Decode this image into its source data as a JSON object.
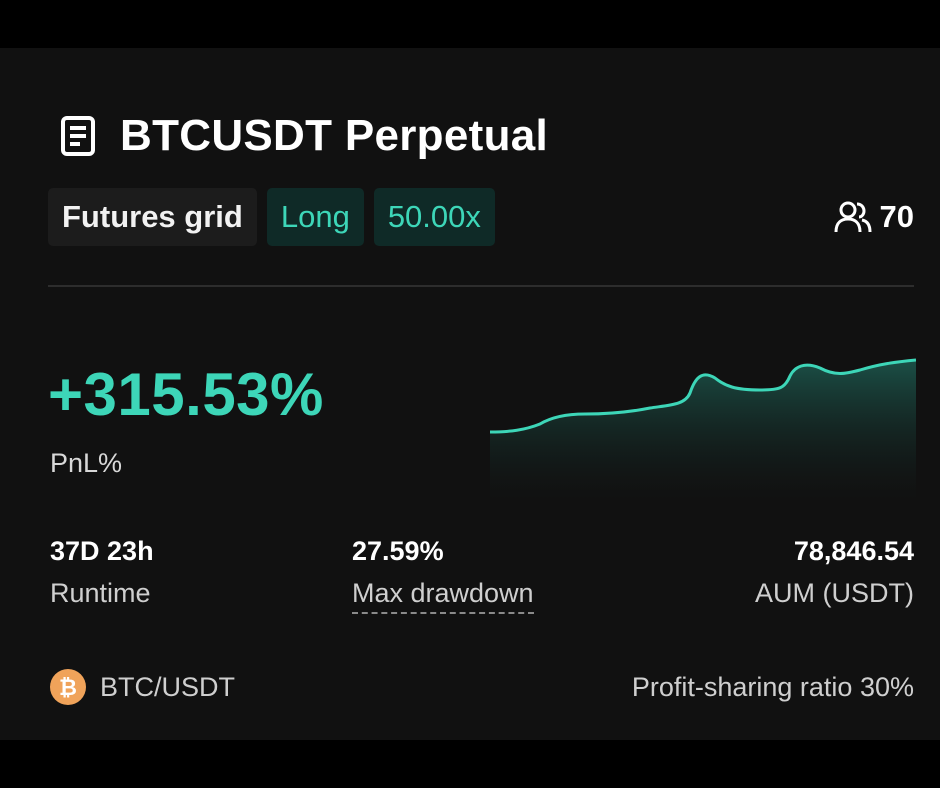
{
  "title": "BTCUSDT Perpetual",
  "tags": {
    "type": "Futures grid",
    "direction": "Long",
    "leverage": "50.00x"
  },
  "followers": {
    "icon": "users-icon",
    "count": "70"
  },
  "pnl": {
    "value": "+315.53%",
    "label": "PnL%"
  },
  "metrics": {
    "runtime": {
      "value": "37D 23h",
      "label": "Runtime"
    },
    "drawdown": {
      "value": "27.59%",
      "label": "Max drawdown"
    },
    "aum": {
      "value": "78,846.54",
      "label": "AUM (USDT)"
    }
  },
  "pair": {
    "icon": "bitcoin-icon",
    "label": "BTC/USDT"
  },
  "profit_sharing": "Profit-sharing ratio 30%",
  "colors": {
    "accent": "#3dd6b8",
    "background": "#111111",
    "tag_bg": "#0f2a27",
    "bitcoin": "#f0a35a"
  }
}
